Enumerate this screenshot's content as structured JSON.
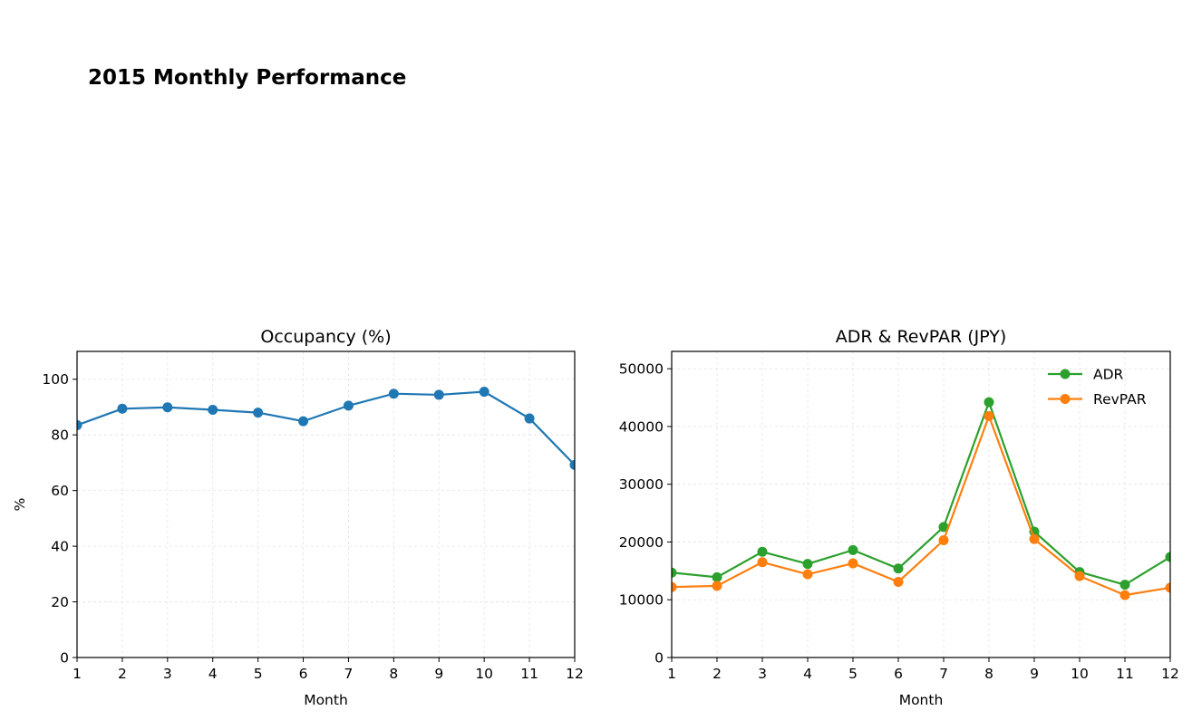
{
  "figure": {
    "suptitle": "2015 Monthly Performance"
  },
  "chart_data": [
    {
      "type": "line",
      "title": "Occupancy (%)",
      "xlabel": "Month",
      "ylabel": "%",
      "x": [
        1,
        2,
        3,
        4,
        5,
        6,
        7,
        8,
        9,
        10,
        11,
        12
      ],
      "xlim": [
        1,
        12
      ],
      "ylim": [
        0,
        110
      ],
      "yticks": [
        0,
        20,
        40,
        60,
        80,
        100
      ],
      "grid": true,
      "series": [
        {
          "name": "Occupancy",
          "color": "#1f77b4",
          "values": [
            83.5,
            89.4,
            89.9,
            89.0,
            88.0,
            84.9,
            90.5,
            94.8,
            94.4,
            95.5,
            85.9,
            69.2
          ]
        }
      ]
    },
    {
      "type": "line",
      "title": "ADR & RevPAR (JPY)",
      "xlabel": "Month",
      "ylabel": "",
      "x": [
        1,
        2,
        3,
        4,
        5,
        6,
        7,
        8,
        9,
        10,
        11,
        12
      ],
      "xlim": [
        1,
        12
      ],
      "ylim": [
        0,
        53000
      ],
      "yticks": [
        0,
        10000,
        20000,
        30000,
        40000,
        50000
      ],
      "grid": true,
      "legend": "top-right",
      "series": [
        {
          "name": "ADR",
          "color": "#2ca02c",
          "values": [
            14700,
            13900,
            18300,
            16200,
            18600,
            15400,
            22600,
            44200,
            21800,
            14800,
            12600,
            17400
          ]
        },
        {
          "name": "RevPAR",
          "color": "#ff7f0e",
          "values": [
            12200,
            12400,
            16500,
            14400,
            16300,
            13100,
            20300,
            41800,
            20500,
            14100,
            10800,
            12100
          ]
        }
      ]
    }
  ]
}
